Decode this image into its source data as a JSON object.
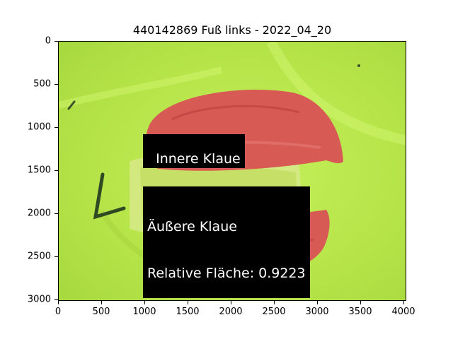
{
  "title": "440142869 Fuß links - 2022_04_20",
  "x_ticks": [
    "0",
    "500",
    "1000",
    "1500",
    "2000",
    "2500",
    "3000",
    "3500",
    "4000"
  ],
  "y_ticks": [
    "0",
    "500",
    "1000",
    "1500",
    "2000",
    "2500",
    "3000"
  ],
  "annotations": {
    "inner": "Innere Klaue",
    "outer_line1": "Äußere Klaue",
    "outer_line2": "Relative Fläche: 0.9223"
  },
  "colors": {
    "background_green": "#b7e84a",
    "claw_red": "#d85a55",
    "label_bg": "#000000",
    "label_text": "#ffffff"
  }
}
